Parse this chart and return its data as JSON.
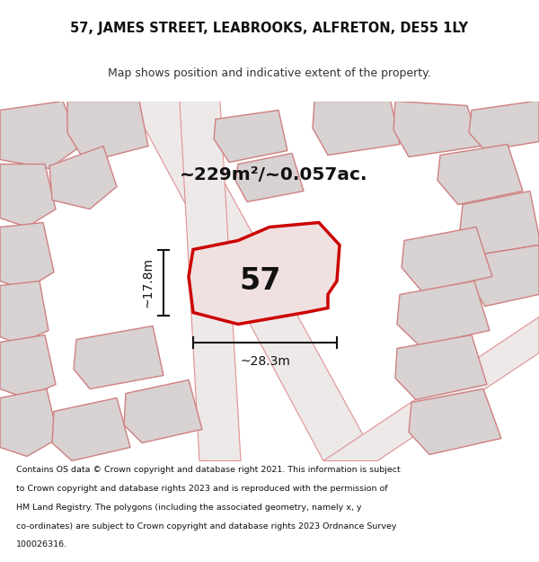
{
  "title_line1": "57, JAMES STREET, LEABROOKS, ALFRETON, DE55 1LY",
  "title_line2": "Map shows position and indicative extent of the property.",
  "area_text": "~229m²/~0.057ac.",
  "property_number": "57",
  "dim_width": "~28.3m",
  "dim_height": "~17.8m",
  "footer_lines": [
    "Contains OS data © Crown copyright and database right 2021. This information is subject",
    "to Crown copyright and database rights 2023 and is reproduced with the permission of",
    "HM Land Registry. The polygons (including the associated geometry, namely x, y",
    "co-ordinates) are subject to Crown copyright and database rights 2023 Ordnance Survey",
    "100026316."
  ],
  "highlight_color": "#cc0000",
  "highlight_fill": "#f0e0e0",
  "building_fill": "#d8d2d2",
  "building_edge": "#d08080",
  "map_bg": "#ede9e9",
  "title_bg": "#ffffff",
  "footer_bg": "#ffffff"
}
